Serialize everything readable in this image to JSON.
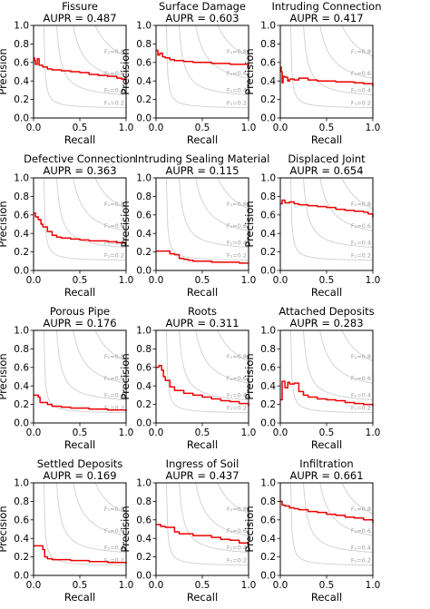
{
  "chart_data": [
    {
      "type": "line",
      "title": "Fissure",
      "subtitle": "AUPR = 0.487",
      "xlabel": "Recall",
      "ylabel": "Precision",
      "xlim": [
        0,
        1
      ],
      "ylim": [
        0,
        1
      ],
      "x": [
        0,
        0.01,
        0.02,
        0.04,
        0.06,
        0.1,
        0.15,
        0.2,
        0.3,
        0.4,
        0.5,
        0.6,
        0.7,
        0.8,
        0.9,
        0.95,
        1.0
      ],
      "series": [
        {
          "values": [
            0.65,
            0.62,
            0.58,
            0.64,
            0.57,
            0.55,
            0.53,
            0.52,
            0.51,
            0.5,
            0.49,
            0.47,
            0.46,
            0.45,
            0.43,
            0.42,
            0.37
          ]
        }
      ]
    },
    {
      "type": "line",
      "title": "Surface Damage",
      "subtitle": "AUPR = 0.603",
      "xlabel": "Recall",
      "ylabel": "Precision",
      "xlim": [
        0,
        1
      ],
      "ylim": [
        0,
        1
      ],
      "x": [
        0,
        0.02,
        0.04,
        0.07,
        0.1,
        0.15,
        0.2,
        0.3,
        0.4,
        0.5,
        0.6,
        0.7,
        0.8,
        0.9,
        1.0
      ],
      "series": [
        {
          "values": [
            0.73,
            0.68,
            0.7,
            0.66,
            0.65,
            0.63,
            0.62,
            0.61,
            0.6,
            0.6,
            0.59,
            0.59,
            0.58,
            0.58,
            0.56
          ]
        }
      ]
    },
    {
      "type": "line",
      "title": "Intruding Connection",
      "subtitle": "AUPR = 0.417",
      "xlabel": "Recall",
      "ylabel": "Precision",
      "xlim": [
        0,
        1
      ],
      "ylim": [
        0,
        1
      ],
      "x": [
        0,
        0.01,
        0.02,
        0.03,
        0.05,
        0.08,
        0.1,
        0.15,
        0.2,
        0.3,
        0.4,
        0.5,
        0.6,
        0.7,
        0.8,
        0.9,
        1.0
      ],
      "series": [
        {
          "values": [
            0.55,
            0.5,
            0.38,
            0.45,
            0.44,
            0.4,
            0.42,
            0.41,
            0.43,
            0.41,
            0.4,
            0.4,
            0.39,
            0.39,
            0.38,
            0.37,
            0.34
          ]
        }
      ]
    },
    {
      "type": "line",
      "title": "Defective Connection",
      "subtitle": "AUPR = 0.363",
      "xlabel": "Recall",
      "ylabel": "Precision",
      "xlim": [
        0,
        1
      ],
      "ylim": [
        0,
        1
      ],
      "x": [
        0,
        0.02,
        0.05,
        0.08,
        0.1,
        0.15,
        0.2,
        0.25,
        0.3,
        0.4,
        0.5,
        0.6,
        0.7,
        0.8,
        0.9,
        1.0
      ],
      "series": [
        {
          "values": [
            0.62,
            0.58,
            0.55,
            0.5,
            0.47,
            0.42,
            0.38,
            0.36,
            0.35,
            0.34,
            0.33,
            0.32,
            0.32,
            0.31,
            0.3,
            0.29
          ]
        }
      ]
    },
    {
      "type": "line",
      "title": "Intruding Sealing Material",
      "subtitle": "AUPR = 0.115",
      "xlabel": "Recall",
      "ylabel": "Precision",
      "xlim": [
        0,
        1
      ],
      "ylim": [
        0,
        1
      ],
      "x": [
        0,
        0.1,
        0.15,
        0.2,
        0.25,
        0.3,
        0.35,
        0.4,
        0.5,
        0.6,
        0.7,
        0.8,
        0.9,
        1.0
      ],
      "series": [
        {
          "values": [
            0.21,
            0.21,
            0.18,
            0.17,
            0.13,
            0.12,
            0.11,
            0.1,
            0.1,
            0.09,
            0.09,
            0.09,
            0.08,
            0.08
          ]
        }
      ]
    },
    {
      "type": "line",
      "title": "Displaced Joint",
      "subtitle": "AUPR = 0.654",
      "xlabel": "Recall",
      "ylabel": "Precision",
      "xlim": [
        0,
        1
      ],
      "ylim": [
        0,
        1
      ],
      "x": [
        0,
        0.02,
        0.05,
        0.1,
        0.15,
        0.2,
        0.3,
        0.4,
        0.5,
        0.6,
        0.7,
        0.8,
        0.9,
        0.95,
        1.0
      ],
      "series": [
        {
          "values": [
            0.72,
            0.76,
            0.73,
            0.74,
            0.72,
            0.71,
            0.7,
            0.69,
            0.68,
            0.66,
            0.65,
            0.64,
            0.63,
            0.61,
            0.57
          ]
        }
      ]
    },
    {
      "type": "line",
      "title": "Porous Pipe",
      "subtitle": "AUPR = 0.176",
      "xlabel": "Recall",
      "ylabel": "Precision",
      "xlim": [
        0,
        1
      ],
      "ylim": [
        0,
        1
      ],
      "x": [
        0,
        0.05,
        0.07,
        0.15,
        0.2,
        0.25,
        0.3,
        0.4,
        0.5,
        0.6,
        0.7,
        0.8,
        0.9,
        1.0
      ],
      "series": [
        {
          "values": [
            0.3,
            0.28,
            0.22,
            0.2,
            0.18,
            0.18,
            0.17,
            0.16,
            0.16,
            0.15,
            0.15,
            0.14,
            0.14,
            0.13
          ]
        }
      ]
    },
    {
      "type": "line",
      "title": "Roots",
      "subtitle": "AUPR = 0.311",
      "xlabel": "Recall",
      "ylabel": "Precision",
      "xlim": [
        0,
        1
      ],
      "ylim": [
        0,
        1
      ],
      "x": [
        0,
        0.03,
        0.06,
        0.08,
        0.1,
        0.15,
        0.2,
        0.3,
        0.4,
        0.5,
        0.6,
        0.7,
        0.8,
        0.9,
        1.0
      ],
      "series": [
        {
          "values": [
            0.6,
            0.62,
            0.57,
            0.5,
            0.46,
            0.39,
            0.35,
            0.32,
            0.3,
            0.28,
            0.26,
            0.24,
            0.23,
            0.21,
            0.18
          ]
        }
      ]
    },
    {
      "type": "line",
      "title": "Attached Deposits",
      "subtitle": "AUPR = 0.283",
      "xlabel": "Recall",
      "ylabel": "Precision",
      "xlim": [
        0,
        1
      ],
      "ylim": [
        0,
        1
      ],
      "x": [
        0,
        0.02,
        0.05,
        0.08,
        0.1,
        0.15,
        0.2,
        0.25,
        0.3,
        0.4,
        0.5,
        0.6,
        0.7,
        0.8,
        0.9,
        1.0
      ],
      "series": [
        {
          "values": [
            0.25,
            0.45,
            0.38,
            0.44,
            0.42,
            0.43,
            0.34,
            0.3,
            0.28,
            0.26,
            0.25,
            0.24,
            0.22,
            0.21,
            0.2,
            0.18
          ]
        }
      ]
    },
    {
      "type": "line",
      "title": "Settled Deposits",
      "subtitle": "AUPR = 0.169",
      "xlabel": "Recall",
      "ylabel": "Precision",
      "xlim": [
        0,
        1
      ],
      "ylim": [
        0,
        1
      ],
      "x": [
        0,
        0.05,
        0.1,
        0.12,
        0.15,
        0.2,
        0.3,
        0.4,
        0.5,
        0.6,
        0.7,
        0.8,
        0.9,
        1.0
      ],
      "series": [
        {
          "values": [
            0.32,
            0.32,
            0.28,
            0.2,
            0.18,
            0.17,
            0.17,
            0.16,
            0.16,
            0.15,
            0.15,
            0.14,
            0.14,
            0.13
          ]
        }
      ]
    },
    {
      "type": "line",
      "title": "Ingress of Soil",
      "subtitle": "AUPR = 0.437",
      "xlabel": "Recall",
      "ylabel": "Precision",
      "xlim": [
        0,
        1
      ],
      "ylim": [
        0,
        1
      ],
      "x": [
        0,
        0.02,
        0.05,
        0.1,
        0.2,
        0.25,
        0.3,
        0.4,
        0.5,
        0.6,
        0.7,
        0.8,
        0.9,
        1.0
      ],
      "series": [
        {
          "values": [
            0.55,
            0.55,
            0.53,
            0.52,
            0.47,
            0.45,
            0.45,
            0.43,
            0.43,
            0.41,
            0.39,
            0.38,
            0.35,
            0.31
          ]
        }
      ]
    },
    {
      "type": "line",
      "title": "Infiltration",
      "subtitle": "AUPR = 0.661",
      "xlabel": "Recall",
      "ylabel": "Precision",
      "xlim": [
        0,
        1
      ],
      "ylim": [
        0,
        1
      ],
      "x": [
        0,
        0.02,
        0.05,
        0.1,
        0.15,
        0.2,
        0.3,
        0.4,
        0.5,
        0.6,
        0.7,
        0.8,
        0.9,
        1.0
      ],
      "series": [
        {
          "values": [
            0.8,
            0.76,
            0.75,
            0.73,
            0.72,
            0.71,
            0.69,
            0.68,
            0.66,
            0.65,
            0.63,
            0.62,
            0.6,
            0.57
          ]
        }
      ]
    }
  ],
  "axis_ticks": [
    "0.0",
    "0.2",
    "0.4",
    "0.6",
    "0.8",
    "1.0"
  ],
  "x_ticks": [
    "0.0",
    "0.5",
    "1.0"
  ],
  "iso_f1": [
    {
      "f": 0.2,
      "label": "F₁=0.2"
    },
    {
      "f": 0.4,
      "label": "F₁=0.4"
    },
    {
      "f": 0.6,
      "label": "F₁=0.6"
    },
    {
      "f": 0.8,
      "label": "F₁=0.8"
    }
  ],
  "colors": {
    "curve": "#ee0000",
    "iso": "#d3d3d3",
    "axes": "#000000"
  }
}
